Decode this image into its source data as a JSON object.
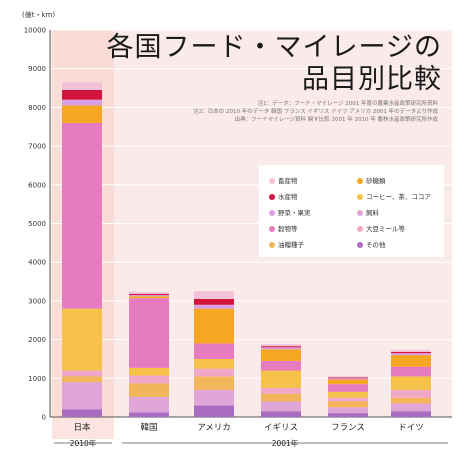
{
  "title_lines": [
    "各国フード・マイレージの",
    "品目別比較"
  ],
  "source_lines": [
    "注1：データ：フード・マイレージ 2001 年度の農業水産政策研究所資料",
    "注2：日本の 2010 年のデータ 韓国 フランス イギリス ドイツ アメリカ 2001 年のデータより作成",
    "出典：フードマイレージ資料 関す比較  2001 年 2010 年 農林水産政策研究所作成"
  ],
  "unit_label": "(億t・km)",
  "period_labels": {
    "japan": "2010年",
    "others": "2001年"
  },
  "colors": {
    "background_panel": "#fbeaea",
    "japan_highlight": "#f9cfc7",
    "axis": "#555555"
  },
  "chart_data": {
    "type": "bar",
    "stacked": true,
    "title": "各国フード・マイレージの品目別比較",
    "ylim": [
      0,
      10000
    ],
    "yticks": [
      0,
      1000,
      2000,
      3000,
      4000,
      5000,
      6000,
      7000,
      8000,
      9000,
      10000
    ],
    "ylabel": "(億t・km)",
    "categories": [
      "日本",
      "韓国",
      "アメリカ",
      "イギリス",
      "フランス",
      "ドイツ"
    ],
    "legend_position": "right-middle",
    "series": [
      {
        "name": "その他",
        "color": "#a86cc0",
        "values": [
          200,
          120,
          300,
          150,
          100,
          150
        ]
      },
      {
        "name": "飼料",
        "color": "#e0a6d8",
        "values": [
          700,
          400,
          400,
          250,
          150,
          200
        ]
      },
      {
        "name": "油糧種子",
        "color": "#f3b55a",
        "values": [
          150,
          350,
          350,
          200,
          150,
          150
        ]
      },
      {
        "name": "大豆ミール等",
        "color": "#f0a8c8",
        "values": [
          150,
          200,
          200,
          150,
          100,
          200
        ]
      },
      {
        "name": "コーヒー、茶、ココア",
        "color": "#f6c24a",
        "values": [
          1600,
          200,
          250,
          450,
          150,
          350
        ]
      },
      {
        "name": "穀物等",
        "color": "#e77bbf",
        "values": [
          4800,
          1800,
          400,
          250,
          200,
          250
        ]
      },
      {
        "name": "砂糖類",
        "color": "#f5a623",
        "values": [
          450,
          50,
          900,
          300,
          120,
          300
        ]
      },
      {
        "name": "野菜・果実",
        "color": "#d9a1e5",
        "values": [
          150,
          30,
          100,
          50,
          30,
          50
        ]
      },
      {
        "name": "水産物",
        "color": "#d3143a",
        "values": [
          250,
          30,
          150,
          30,
          20,
          30
        ]
      },
      {
        "name": "畜産物",
        "color": "#f4c2d8",
        "values": [
          200,
          50,
          200,
          50,
          30,
          50
        ]
      }
    ]
  },
  "legend_order": [
    "畜産物",
    "砂糖類",
    "水産物",
    "コーヒー、茶、ココア",
    "野菜・果実",
    "飼料",
    "穀物等",
    "大豆ミール等",
    "油糧種子",
    "その他"
  ]
}
